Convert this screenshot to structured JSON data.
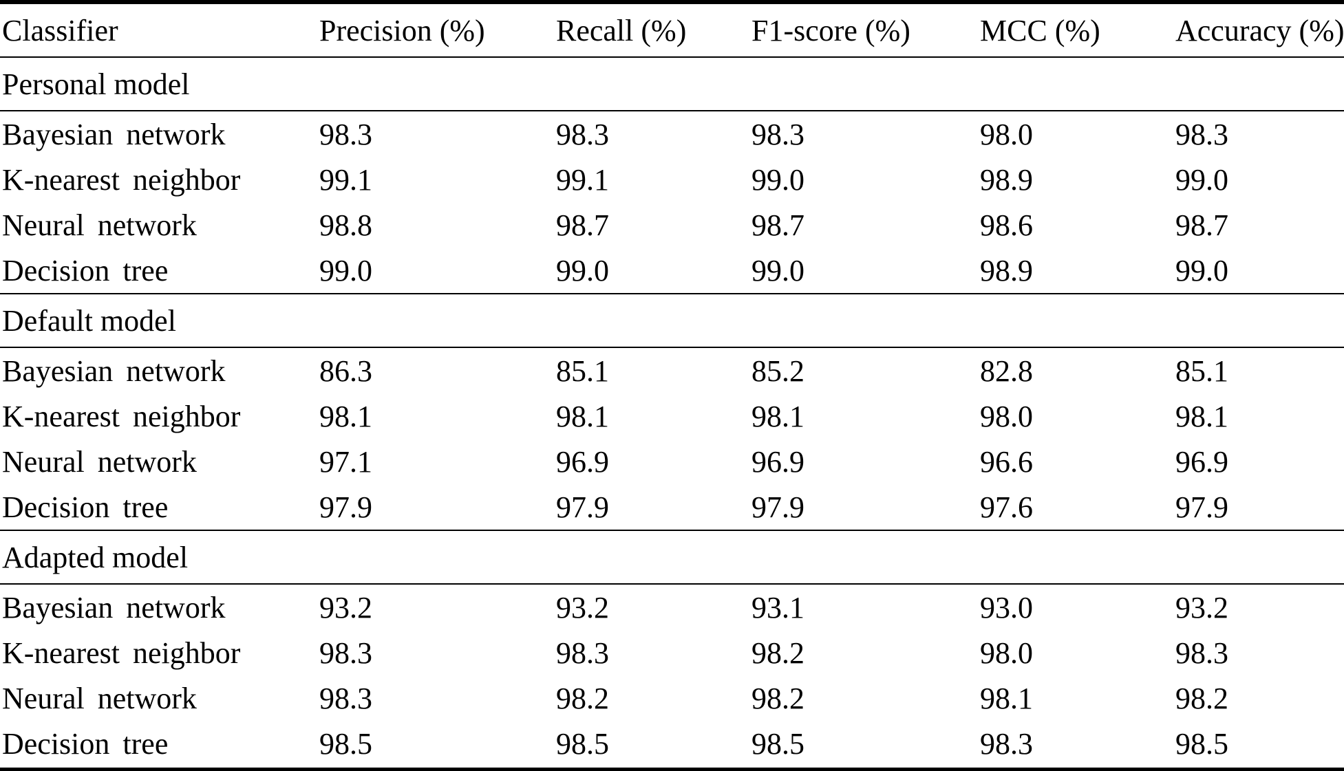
{
  "colors": {
    "text": "#000000",
    "background": "#ffffff",
    "rule": "#000000"
  },
  "table": {
    "columns": [
      "Classifier",
      "Precision (%)",
      "Recall (%)",
      "F1-score (%)",
      "MCC (%)",
      "Accuracy (%)"
    ],
    "sections": [
      {
        "label": "Personal model",
        "rows": [
          {
            "classifier": "Bayesian network",
            "values": [
              "98.3",
              "98.3",
              "98.3",
              "98.0",
              "98.3"
            ]
          },
          {
            "classifier": "K-nearest neighbor",
            "values": [
              "99.1",
              "99.1",
              "99.0",
              "98.9",
              "99.0"
            ]
          },
          {
            "classifier": "Neural network",
            "values": [
              "98.8",
              "98.7",
              "98.7",
              "98.6",
              "98.7"
            ]
          },
          {
            "classifier": "Decision tree",
            "values": [
              "99.0",
              "99.0",
              "99.0",
              "98.9",
              "99.0"
            ]
          }
        ]
      },
      {
        "label": "Default model",
        "rows": [
          {
            "classifier": "Bayesian network",
            "values": [
              "86.3",
              "85.1",
              "85.2",
              "82.8",
              "85.1"
            ]
          },
          {
            "classifier": "K-nearest neighbor",
            "values": [
              "98.1",
              "98.1",
              "98.1",
              "98.0",
              "98.1"
            ]
          },
          {
            "classifier": "Neural network",
            "values": [
              "97.1",
              "96.9",
              "96.9",
              "96.6",
              "96.9"
            ]
          },
          {
            "classifier": "Decision tree",
            "values": [
              "97.9",
              "97.9",
              "97.9",
              "97.6",
              "97.9"
            ]
          }
        ]
      },
      {
        "label": "Adapted model",
        "rows": [
          {
            "classifier": "Bayesian network",
            "values": [
              "93.2",
              "93.2",
              "93.1",
              "93.0",
              "93.2"
            ]
          },
          {
            "classifier": "K-nearest neighbor",
            "values": [
              "98.3",
              "98.3",
              "98.2",
              "98.0",
              "98.3"
            ]
          },
          {
            "classifier": "Neural network",
            "values": [
              "98.3",
              "98.2",
              "98.2",
              "98.1",
              "98.2"
            ]
          },
          {
            "classifier": "Decision tree",
            "values": [
              "98.5",
              "98.5",
              "98.5",
              "98.3",
              "98.5"
            ]
          }
        ]
      }
    ]
  }
}
